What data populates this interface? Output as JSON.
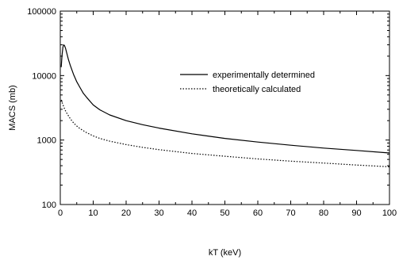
{
  "chart_data": {
    "type": "line",
    "xlabel": "kT (keV)",
    "ylabel": "MACS (mb)",
    "xlim": [
      0,
      100
    ],
    "ylim": [
      100,
      100000
    ],
    "yscale": "log",
    "grid": false,
    "legend_position": "upper-right",
    "x_ticks": [
      0,
      10,
      20,
      30,
      40,
      50,
      60,
      70,
      80,
      90,
      100
    ],
    "x_tick_labels": [
      "0",
      "10",
      "20",
      "30",
      "40",
      "50",
      "60",
      "70",
      "80",
      "90",
      "100"
    ],
    "y_ticks": [
      100,
      1000,
      10000,
      100000
    ],
    "y_tick_labels": [
      "100",
      "1000",
      "10000",
      "100000"
    ],
    "series": [
      {
        "name": "experimentally determined",
        "style": "solid",
        "color": "#000000",
        "x": [
          0.3,
          0.5,
          0.8,
          1.0,
          1.3,
          1.6,
          2.0,
          2.5,
          3,
          4,
          5,
          6,
          7,
          8,
          10,
          12,
          15,
          20,
          25,
          30,
          40,
          50,
          60,
          70,
          80,
          90,
          100
        ],
        "y": [
          13500,
          20000,
          27500,
          30000,
          29000,
          26500,
          22000,
          17500,
          14500,
          10500,
          8000,
          6500,
          5300,
          4600,
          3500,
          2950,
          2450,
          2000,
          1730,
          1530,
          1250,
          1060,
          930,
          830,
          750,
          690,
          630
        ]
      },
      {
        "name": "theoretically calculated",
        "style": "dotted",
        "color": "#000000",
        "x": [
          0.3,
          0.5,
          1,
          1.5,
          2,
          3,
          4,
          5,
          6,
          8,
          10,
          12,
          15,
          20,
          25,
          30,
          40,
          50,
          60,
          70,
          80,
          90,
          100
        ],
        "y": [
          4200,
          3900,
          3300,
          2900,
          2600,
          2150,
          1850,
          1650,
          1500,
          1300,
          1160,
          1060,
          960,
          850,
          770,
          710,
          620,
          560,
          510,
          470,
          440,
          410,
          385
        ]
      }
    ]
  }
}
